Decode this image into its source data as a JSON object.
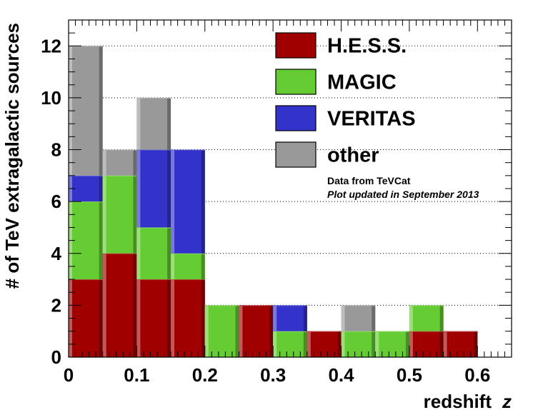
{
  "chart_data": {
    "type": "bar",
    "stacked": true,
    "xlabel": "redshift",
    "xlabel_var": "z",
    "ylabel": "# of TeV extragalactic sources",
    "xlim": [
      0,
      0.65
    ],
    "ylim": [
      0,
      13
    ],
    "x_ticks": [
      "0",
      "0.1",
      "0.2",
      "0.3",
      "0.4",
      "0.5",
      "0.6"
    ],
    "y_ticks": [
      "0",
      "2",
      "4",
      "6",
      "8",
      "10",
      "12"
    ],
    "bin_width": 0.05,
    "bin_starts": [
      0,
      0.05,
      0.1,
      0.15,
      0.2,
      0.25,
      0.3,
      0.35,
      0.4,
      0.45,
      0.5,
      0.55,
      0.6
    ],
    "series": [
      {
        "name": "H.E.S.S.",
        "color": "#a00000",
        "values": [
          3,
          4,
          3,
          3,
          0,
          2,
          0,
          1,
          0,
          0,
          1,
          1,
          0
        ]
      },
      {
        "name": "MAGIC",
        "color": "#66cc33",
        "values": [
          3,
          3,
          2,
          1,
          2,
          0,
          1,
          0,
          1,
          1,
          1,
          0,
          0
        ]
      },
      {
        "name": "VERITAS",
        "color": "#3333cc",
        "values": [
          1,
          0,
          3,
          4,
          0,
          0,
          1,
          0,
          0,
          0,
          0,
          0,
          0
        ]
      },
      {
        "name": "other",
        "color": "#999999",
        "values": [
          5,
          1,
          2,
          0,
          0,
          0,
          0,
          0,
          1,
          0,
          0,
          0,
          0
        ]
      }
    ],
    "grid": "horizontal dotted",
    "legend_position": "top-right",
    "annotations": [
      "Data from TeVCat",
      "Plot updated in September 2013"
    ]
  }
}
